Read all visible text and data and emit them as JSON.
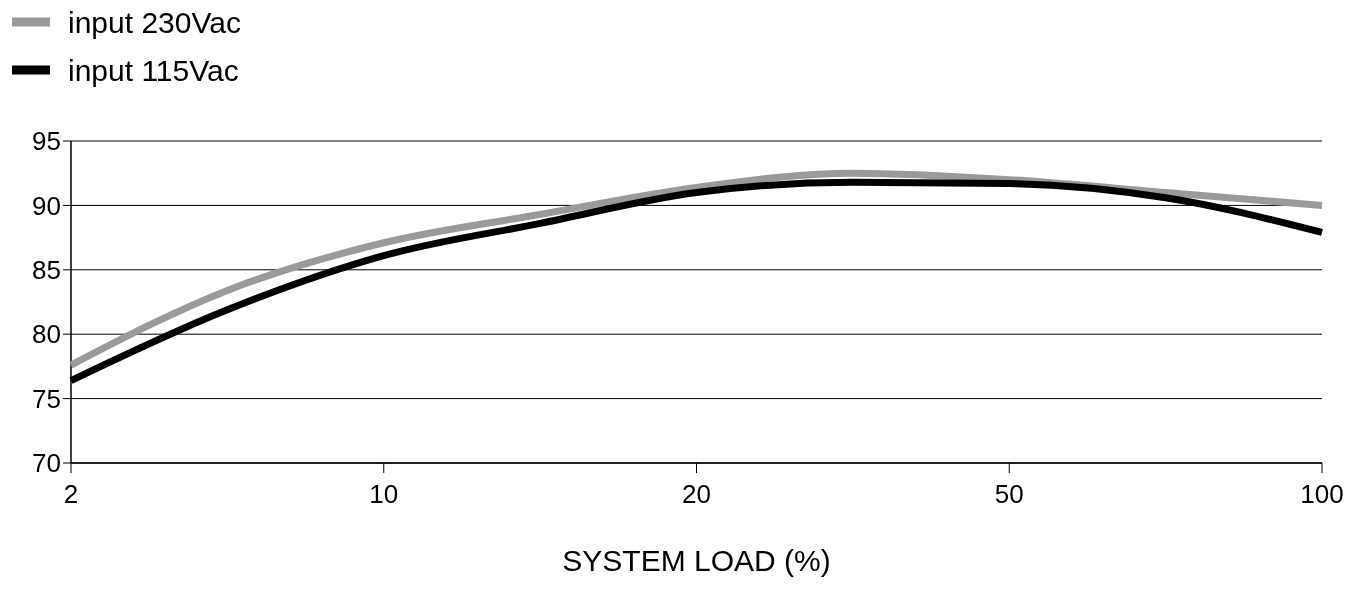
{
  "chart_data": {
    "type": "line",
    "categories": [
      "2",
      null,
      "10",
      null,
      "20",
      null,
      "50",
      null,
      "100"
    ],
    "xlabel": "SYSTEM LOAD (%)",
    "ylim": [
      70,
      95
    ],
    "yticks": [
      70,
      75,
      80,
      85,
      90,
      95
    ],
    "grid": "y",
    "legend": "top left",
    "marker": "none",
    "line_style": "solid",
    "series": [
      {
        "name": "input 230Vac",
        "color": "#9a9a9a",
        "values": [
          77.6,
          83.4,
          87.1,
          89.3,
          91.4,
          92.5,
          92.0,
          91.0,
          90.0
        ]
      },
      {
        "name": "input 115Vac",
        "color": "#000000",
        "values": [
          76.4,
          81.9,
          86.1,
          88.6,
          91.0,
          91.8,
          91.7,
          90.6,
          87.9
        ]
      }
    ]
  }
}
